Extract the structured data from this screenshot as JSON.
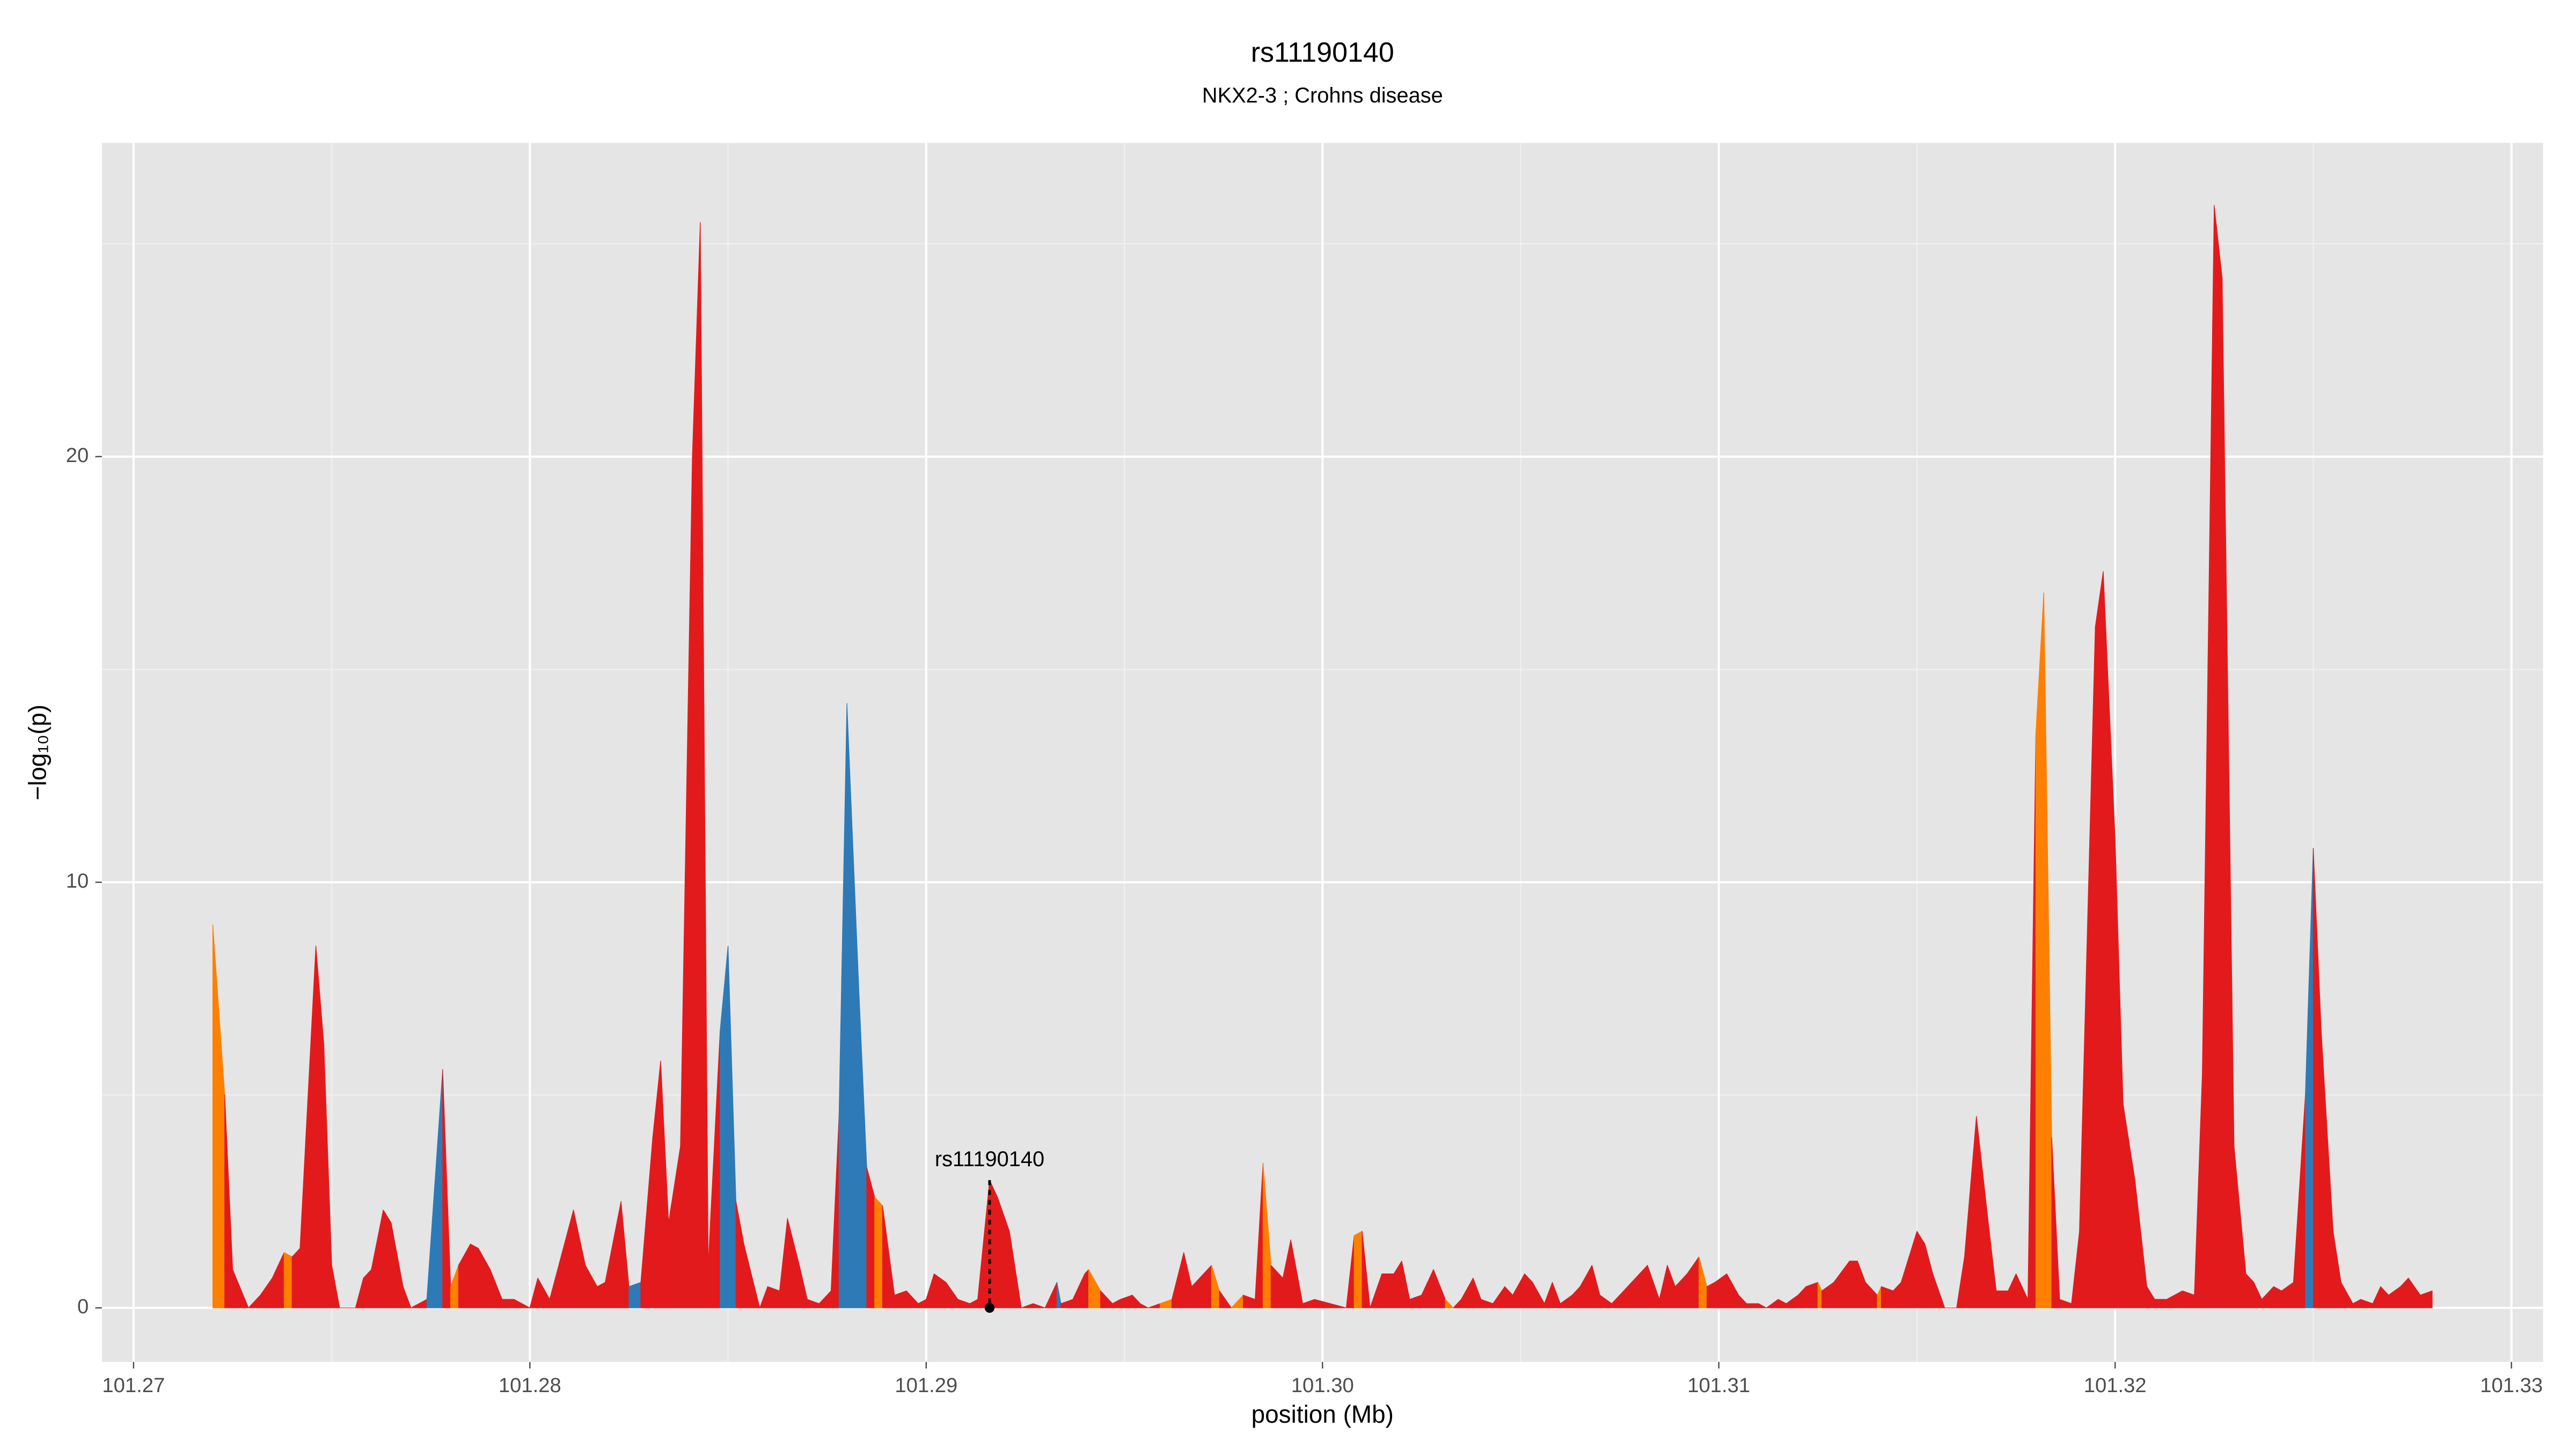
{
  "chart_data": {
    "type": "area",
    "title": "rs11190140",
    "subtitle": "NKX2-3 ; Crohns disease",
    "x_label": "position (Mb)",
    "y_label": "−log₁₀(p)",
    "xlim": [
      101.2692,
      101.3308
    ],
    "ylim": [
      -1.27,
      27.37
    ],
    "xticks": [
      101.27,
      101.28,
      101.29,
      {
        "value": 101.3,
        "label": "101.30"
      },
      101.31,
      101.32,
      101.33
    ],
    "yticks": [
      0,
      10,
      20
    ],
    "grid": true,
    "background": "#e5e5e5",
    "annotation": {
      "label": "rs11190140",
      "x": 101.2916,
      "y": 3.0,
      "point_y": 0
    },
    "x": [
      101.272,
      101.2723,
      101.2725,
      101.2729,
      101.2732,
      101.2735,
      101.2738,
      101.274,
      101.2742,
      101.2746,
      101.2748,
      101.275,
      101.2752,
      101.2756,
      101.2758,
      101.276,
      101.2763,
      101.2765,
      101.2768,
      101.277,
      101.2774,
      101.2778,
      101.278,
      101.2782,
      101.2785,
      101.2787,
      101.279,
      101.2793,
      101.2796,
      101.28,
      101.2802,
      101.2805,
      101.2811,
      101.2814,
      101.2817,
      101.2819,
      101.2823,
      101.2825,
      101.2828,
      101.2831,
      101.2833,
      101.2835,
      101.2838,
      101.2841,
      101.2843,
      101.2845,
      101.2848,
      101.285,
      101.2852,
      101.2854,
      101.2858,
      101.286,
      101.2863,
      101.2865,
      101.2868,
      101.287,
      101.2873,
      101.2876,
      101.2878,
      101.288,
      101.2883,
      101.2885,
      101.2887,
      101.2889,
      101.2892,
      101.2895,
      101.2898,
      101.29,
      101.2902,
      101.2905,
      101.2908,
      101.2911,
      101.2913,
      101.2916,
      101.2918,
      101.2921,
      101.2924,
      101.2927,
      101.293,
      101.2933,
      101.2934,
      101.2937,
      101.294,
      101.2941,
      101.2944,
      101.2947,
      101.2949,
      101.2952,
      101.2954,
      101.2956,
      101.2959,
      101.2962,
      101.2965,
      101.2967,
      101.297,
      101.2972,
      101.2974,
      101.2977,
      101.298,
      101.2983,
      101.2985,
      101.2987,
      101.299,
      101.2992,
      101.2995,
      101.2998,
      101.3002,
      101.3006,
      101.3008,
      101.301,
      101.3012,
      101.3015,
      101.3018,
      101.302,
      101.3022,
      101.3025,
      101.3028,
      101.3031,
      101.3033,
      101.3035,
      101.3038,
      101.304,
      101.3043,
      101.3046,
      101.3048,
      101.3051,
      101.3053,
      101.3056,
      101.3058,
      101.306,
      101.3063,
      101.3065,
      101.3068,
      101.307,
      101.3073,
      101.3075,
      101.3078,
      101.3082,
      101.3085,
      101.3087,
      101.3089,
      101.3092,
      101.3095,
      101.3097,
      101.3099,
      101.3102,
      101.3105,
      101.3107,
      101.311,
      101.3112,
      101.3115,
      101.3117,
      101.312,
      101.3122,
      101.3125,
      101.3126,
      101.3129,
      101.3133,
      101.3135,
      101.3137,
      101.314,
      101.3141,
      101.3144,
      101.3146,
      101.315,
      101.3152,
      101.3154,
      101.3157,
      101.316,
      101.3162,
      101.3165,
      101.3168,
      101.317,
      101.3173,
      101.3175,
      101.3178,
      101.318,
      101.3182,
      101.3184,
      101.3186,
      101.3189,
      101.3191,
      101.3195,
      101.3197,
      101.32,
      101.3202,
      101.3205,
      101.3208,
      101.321,
      101.3213,
      101.3215,
      101.3217,
      101.322,
      101.3222,
      101.3225,
      101.3227,
      101.323,
      101.3233,
      101.3235,
      101.3237,
      101.324,
      101.3242,
      101.3245,
      101.3248,
      101.325,
      101.3252,
      101.3255,
      101.3257,
      101.326,
      101.3262,
      101.3265,
      101.3267,
      101.3269,
      101.3272,
      101.3274,
      101.3277,
      101.328
    ],
    "values": [
      9.0,
      5.0,
      0.9,
      0,
      0.3,
      0.7,
      1.3,
      1.2,
      1.4,
      8.5,
      6.2,
      1.0,
      0,
      0,
      0.7,
      0.9,
      2.3,
      2.0,
      0.5,
      0,
      0.2,
      5.6,
      0.5,
      1.0,
      1.5,
      1.4,
      0.9,
      0.2,
      0.2,
      0,
      0.7,
      0.2,
      2.3,
      1.0,
      0.5,
      0.6,
      2.5,
      0.5,
      0.6,
      4.0,
      5.8,
      2.0,
      3.8,
      20.0,
      25.5,
      1.0,
      6.5,
      8.5,
      2.5,
      1.5,
      0,
      0.5,
      0.4,
      2.1,
      1.0,
      0.2,
      0.1,
      0.4,
      4.5,
      14.2,
      7.5,
      3.3,
      2.6,
      2.4,
      0.3,
      0.4,
      0.1,
      0.2,
      0.8,
      0.6,
      0.2,
      0.1,
      0.2,
      3.0,
      2.6,
      1.8,
      0,
      0.1,
      0,
      0.6,
      0.1,
      0.2,
      0.8,
      0.9,
      0.4,
      0.1,
      0.2,
      0.3,
      0.1,
      0,
      0.1,
      0.2,
      1.3,
      0.5,
      0.8,
      1.0,
      0.4,
      0,
      0.3,
      0.2,
      3.4,
      1.0,
      0.7,
      1.6,
      0.1,
      0.2,
      0.1,
      0,
      1.7,
      1.8,
      0,
      0.8,
      0.8,
      1.1,
      0.2,
      0.3,
      0.9,
      0.2,
      0,
      0.2,
      0.7,
      0.2,
      0.1,
      0.5,
      0.3,
      0.8,
      0.6,
      0.1,
      0.6,
      0.1,
      0.3,
      0.5,
      1.0,
      0.3,
      0.1,
      0.3,
      0.6,
      1.0,
      0.2,
      1.0,
      0.5,
      0.8,
      1.2,
      0.5,
      0.6,
      0.8,
      0.3,
      0.1,
      0.1,
      0,
      0.2,
      0.1,
      0.3,
      0.5,
      0.6,
      0.4,
      0.6,
      1.1,
      1.1,
      0.6,
      0.3,
      0.5,
      0.4,
      0.6,
      1.8,
      1.5,
      0.8,
      0,
      0,
      1.2,
      4.5,
      2.0,
      0.4,
      0.4,
      0.8,
      0.2,
      13.5,
      16.8,
      4.0,
      0.2,
      0.1,
      1.8,
      16.0,
      17.3,
      11.0,
      4.8,
      3.0,
      0.5,
      0.2,
      0.2,
      0.3,
      0.4,
      0.3,
      5.5,
      25.9,
      24.2,
      3.8,
      0.8,
      0.6,
      0.2,
      0.5,
      0.4,
      0.6,
      5.0,
      10.8,
      6.5,
      1.8,
      0.6,
      0.1,
      0.2,
      0.1,
      0.5,
      0.3,
      0.5,
      0.7,
      0.3,
      0.4
    ],
    "colors": [
      "#ff7f00",
      "#e31a1c",
      "#e31a1c",
      "#e31a1c",
      "#e31a1c",
      "#e31a1c",
      "#ff7f00",
      "#e31a1c",
      "#e31a1c",
      "#e31a1c",
      "#e31a1c",
      "#e31a1c",
      "#e31a1c",
      "#e31a1c",
      "#e31a1c",
      "#e31a1c",
      "#e31a1c",
      "#e31a1c",
      "#e31a1c",
      "#e31a1c",
      "#2e7ab6",
      "#e31a1c",
      "#ff7f00",
      "#e31a1c",
      "#e31a1c",
      "#e31a1c",
      "#e31a1c",
      "#e31a1c",
      "#e31a1c",
      "#e31a1c",
      "#e31a1c",
      "#e31a1c",
      "#e31a1c",
      "#e31a1c",
      "#e31a1c",
      "#e31a1c",
      "#e31a1c",
      "#2e7ab6",
      "#e31a1c",
      "#e31a1c",
      "#e31a1c",
      "#e31a1c",
      "#e31a1c",
      "#e31a1c",
      "#e31a1c",
      "#e31a1c",
      "#2e7ab6",
      "#2e7ab6",
      "#e31a1c",
      "#e31a1c",
      "#e31a1c",
      "#e31a1c",
      "#e31a1c",
      "#e31a1c",
      "#e31a1c",
      "#e31a1c",
      "#e31a1c",
      "#e31a1c",
      "#2e7ab6",
      "#2e7ab6",
      "#2e7ab6",
      "#e31a1c",
      "#ff7f00",
      "#e31a1c",
      "#e31a1c",
      "#e31a1c",
      "#e31a1c",
      "#e31a1c",
      "#e31a1c",
      "#e31a1c",
      "#e31a1c",
      "#e31a1c",
      "#e31a1c",
      "#e31a1c",
      "#e31a1c",
      "#e31a1c",
      "#e31a1c",
      "#e31a1c",
      "#e31a1c",
      "#2e7ab6",
      "#e31a1c",
      "#e31a1c",
      "#e31a1c",
      "#ff7f00",
      "#e31a1c",
      "#e31a1c",
      "#e31a1c",
      "#e31a1c",
      "#e31a1c",
      "#e31a1c",
      "#ff7f00",
      "#e31a1c",
      "#e31a1c",
      "#e31a1c",
      "#e31a1c",
      "#ff7f00",
      "#e31a1c",
      "#ff7f00",
      "#e31a1c",
      "#e31a1c",
      "#ff7f00",
      "#e31a1c",
      "#e31a1c",
      "#e31a1c",
      "#e31a1c",
      "#e31a1c",
      "#e31a1c",
      "#e31a1c",
      "#ff7f00",
      "#e31a1c",
      "#e31a1c",
      "#e31a1c",
      "#e31a1c",
      "#e31a1c",
      "#e31a1c",
      "#e31a1c",
      "#e31a1c",
      "#ff7f00",
      "#e31a1c",
      "#e31a1c",
      "#e31a1c",
      "#e31a1c",
      "#e31a1c",
      "#e31a1c",
      "#e31a1c",
      "#e31a1c",
      "#e31a1c",
      "#e31a1c",
      "#e31a1c",
      "#e31a1c",
      "#e31a1c",
      "#e31a1c",
      "#e31a1c",
      "#e31a1c",
      "#e31a1c",
      "#e31a1c",
      "#e31a1c",
      "#e31a1c",
      "#e31a1c",
      "#e31a1c",
      "#e31a1c",
      "#e31a1c",
      "#ff7f00",
      "#e31a1c",
      "#e31a1c",
      "#e31a1c",
      "#e31a1c",
      "#e31a1c",
      "#e31a1c",
      "#e31a1c",
      "#e31a1c",
      "#e31a1c",
      "#e31a1c",
      "#e31a1c",
      "#ff7f00",
      "#e31a1c",
      "#e31a1c",
      "#e31a1c",
      "#e31a1c",
      "#e31a1c",
      "#ff7f00",
      "#e31a1c",
      "#e31a1c",
      "#e31a1c",
      "#e31a1c",
      "#e31a1c",
      "#e31a1c",
      "#e31a1c",
      "#e31a1c",
      "#e31a1c",
      "#e31a1c",
      "#e31a1c",
      "#e31a1c",
      "#e31a1c",
      "#e31a1c",
      "#e31a1c",
      "#ff7f00",
      "#ff7f00",
      "#e31a1c",
      "#e31a1c",
      "#e31a1c",
      "#e31a1c",
      "#e31a1c",
      "#e31a1c",
      "#e31a1c",
      "#e31a1c",
      "#e31a1c",
      "#e31a1c",
      "#e31a1c",
      "#e31a1c",
      "#e31a1c",
      "#e31a1c",
      "#e31a1c",
      "#e31a1c",
      "#e31a1c",
      "#e31a1c",
      "#e31a1c",
      "#e31a1c",
      "#e31a1c",
      "#e31a1c",
      "#e31a1c",
      "#e31a1c",
      "#e31a1c",
      "#2e7ab6",
      "#e31a1c",
      "#e31a1c",
      "#e31a1c",
      "#e31a1c",
      "#e31a1c",
      "#e31a1c",
      "#e31a1c",
      "#e31a1c",
      "#e31a1c",
      "#e31a1c",
      "#e31a1c",
      "#e31a1c",
      "#e31a1c"
    ]
  }
}
